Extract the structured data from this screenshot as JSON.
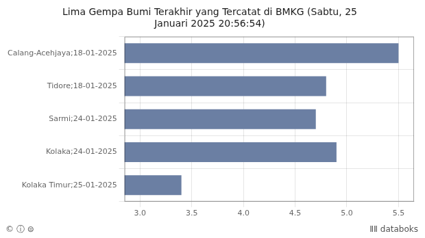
{
  "chart_data": {
    "type": "bar",
    "orientation": "horizontal",
    "title": "Lima Gempa Bumi Terakhir yang Tercatat di BMKG (Sabtu, 25\nJanuari 2025 20:56:54)",
    "categories": [
      "Calang-Acehjaya;18-01-2025",
      "Tidore;18-01-2025",
      "Sarmi;24-01-2025",
      "Kolaka;24-01-2025",
      "Kolaka Timur;25-01-2025"
    ],
    "values": [
      5.5,
      4.8,
      4.7,
      4.9,
      3.4
    ],
    "color": "#6b7fa3",
    "xlim": [
      2.85,
      5.65
    ],
    "xticks": [
      {
        "value": 3.0,
        "label": "3.0"
      },
      {
        "value": 3.5,
        "label": "3.5"
      },
      {
        "value": 4.0,
        "label": "4.0"
      },
      {
        "value": 4.5,
        "label": "4.5"
      },
      {
        "value": 5.0,
        "label": "5.0"
      },
      {
        "value": 5.5,
        "label": "5.5"
      }
    ],
    "grid": true,
    "annotations": [
      "© ⓘ ⊜",
      "ⅡⅡ",
      "databoks"
    ]
  }
}
